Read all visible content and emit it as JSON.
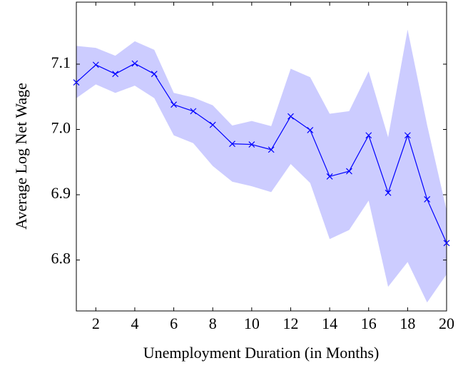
{
  "chart_data": {
    "type": "line",
    "x_label": "Unemployment Duration (in Months)",
    "y_label": "Average Log Net Wage",
    "x": [
      1,
      2,
      3,
      4,
      5,
      6,
      7,
      8,
      9,
      10,
      11,
      12,
      13,
      14,
      15,
      16,
      17,
      18,
      19,
      20
    ],
    "series": [
      {
        "color": "#0000ff",
        "marker": "x",
        "values": [
          7.072,
          7.099,
          7.085,
          7.101,
          7.085,
          7.038,
          7.028,
          7.007,
          6.978,
          6.977,
          6.969,
          7.02,
          6.999,
          6.928,
          6.936,
          6.991,
          6.903,
          6.991,
          6.893,
          6.826
        ]
      }
    ],
    "band": {
      "color": "#ccccff",
      "upper": [
        7.128,
        7.125,
        7.113,
        7.135,
        7.122,
        7.056,
        7.049,
        7.037,
        7.006,
        7.013,
        7.005,
        7.093,
        7.08,
        7.024,
        7.028,
        7.089,
        6.988,
        7.153,
        7.007,
        6.876
      ],
      "lower": [
        7.048,
        7.069,
        7.056,
        7.067,
        7.048,
        6.991,
        6.979,
        6.944,
        6.92,
        6.913,
        6.904,
        6.947,
        6.918,
        6.832,
        6.846,
        6.891,
        6.759,
        6.797,
        6.735,
        6.778
      ]
    },
    "xlim": [
      1,
      20
    ],
    "ylim": [
      6.722,
      7.195
    ],
    "xticks": [
      2,
      4,
      6,
      8,
      10,
      12,
      14,
      16,
      18,
      20
    ],
    "yticks": [
      6.8,
      6.9,
      {
        "value": 7,
        "label": "7.0"
      },
      7.1
    ]
  }
}
